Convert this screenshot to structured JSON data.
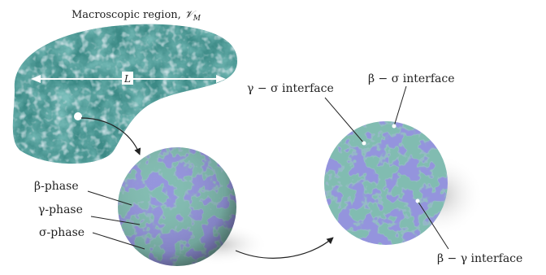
{
  "macro": {
    "title_text": "Macroscopic region, ",
    "title_symbol": "𝒱",
    "title_sub": "M",
    "length_label": "L"
  },
  "phases": {
    "beta": "β-phase",
    "gamma": "γ-phase",
    "sigma": "σ-phase"
  },
  "interfaces": {
    "gamma_sigma": "γ − σ interface",
    "beta_sigma": "β − σ interface",
    "beta_gamma": "β − γ interface"
  },
  "colors": {
    "beta": "#2f8a74",
    "gamma": "#ffffff",
    "sigma": "#3b3fb0",
    "macro": "#3c8a86"
  }
}
